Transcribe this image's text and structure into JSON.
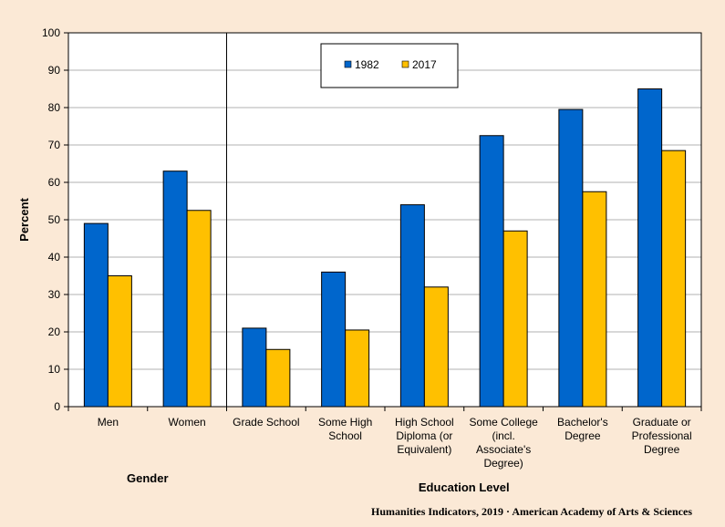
{
  "chart_data": {
    "type": "bar",
    "ylabel": "Percent",
    "ylim": [
      0,
      100
    ],
    "yticks": [
      0,
      10,
      20,
      30,
      40,
      50,
      60,
      70,
      80,
      90,
      100
    ],
    "grid": true,
    "legend_position": "top-center",
    "categories": [
      [
        "Men"
      ],
      [
        "Women"
      ],
      [
        "Grade School"
      ],
      [
        "Some High",
        "School"
      ],
      [
        "High School",
        "Diploma (or",
        "Equivalent)"
      ],
      [
        "Some College",
        "(incl.",
        "Associate's",
        "Degree)"
      ],
      [
        "Bachelor's",
        "Degree"
      ],
      [
        "Graduate or",
        "Professional",
        "Degree"
      ]
    ],
    "series": [
      {
        "name": "1982",
        "color": "#0066cc",
        "values": [
          49,
          63,
          21,
          36,
          54,
          72.5,
          79.5,
          85
        ]
      },
      {
        "name": "2017",
        "color": "#ffc000",
        "values": [
          35,
          52.5,
          15.3,
          20.5,
          32,
          47,
          57.5,
          68.5
        ]
      }
    ],
    "groups": [
      {
        "label": "Gender",
        "from": 0,
        "to": 1
      },
      {
        "label": "Education Level",
        "from": 2,
        "to": 7
      }
    ],
    "divider_after_index": 1
  },
  "source": "Humanities Indicators, 2019 · American Academy of Arts & Sciences"
}
